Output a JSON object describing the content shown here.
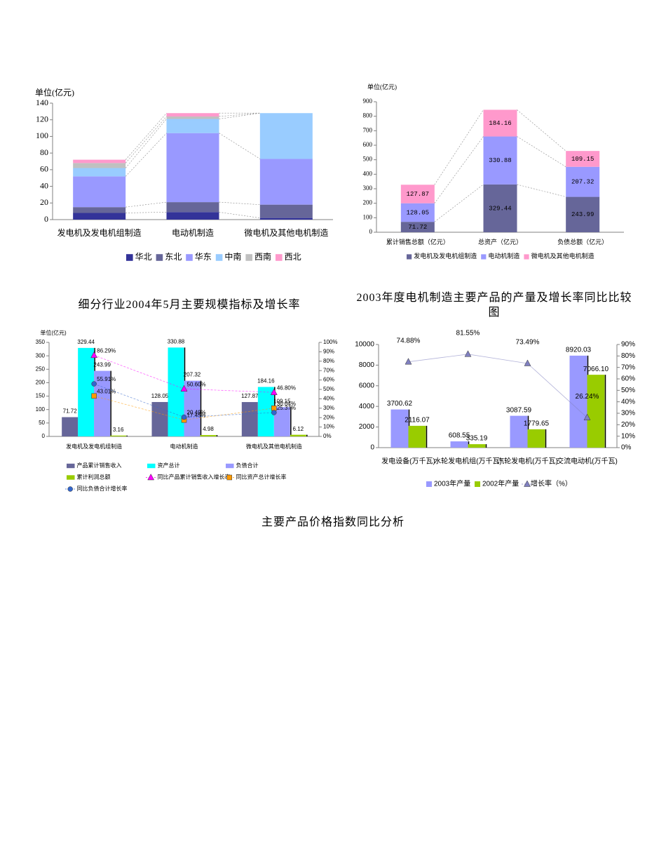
{
  "captions": [
    "细分行业2004年5月主要规模指标及增长率",
    "2003年度电机制造主要产品的产量及增长率同比比较图",
    "主要产品价格指数同比分析"
  ],
  "chart_data": [
    {
      "type": "stacked_bar",
      "y_label": "单位(亿元)",
      "categories": [
        "发电机及发电机组制造",
        "电动机制造",
        "微电机及其他电机制造"
      ],
      "series": [
        {
          "name": "华北",
          "color": "#333399",
          "values": [
            8,
            9,
            2
          ]
        },
        {
          "name": "东北",
          "color": "#666699",
          "values": [
            7,
            12,
            16
          ]
        },
        {
          "name": "华东",
          "color": "#9999ff",
          "values": [
            37,
            83,
            55
          ]
        },
        {
          "name": "中南",
          "color": "#99ccff",
          "values": [
            10,
            17,
            55
          ]
        },
        {
          "name": "西南",
          "color": "#c0c0c0",
          "values": [
            6,
            3,
            0
          ]
        },
        {
          "name": "西北",
          "color": "#ff99cc",
          "values": [
            4,
            4,
            0
          ]
        }
      ],
      "ylim": [
        0,
        140
      ],
      "yticks": [
        0,
        20,
        40,
        60,
        80,
        100,
        120,
        140
      ],
      "series_lines": true,
      "legend": "bottom"
    },
    {
      "type": "stacked_bar",
      "y_label": "单位(亿元)",
      "data_labels": true,
      "categories": [
        "累计销售总额（亿元）",
        "总资产（亿元）",
        "负债总额（亿元）"
      ],
      "series": [
        {
          "name": "发电机及发电机组制造",
          "color": "#666699",
          "values": [
            71.72,
            329.44,
            243.99
          ]
        },
        {
          "name": "电动机制造",
          "color": "#9999ff",
          "values": [
            128.05,
            330.88,
            207.32
          ]
        },
        {
          "name": "微电机及其他电机制造",
          "color": "#ff99cc",
          "values": [
            127.87,
            184.16,
            109.15
          ]
        }
      ],
      "ylim": [
        0,
        900
      ],
      "yticks": [
        0,
        100,
        200,
        300,
        400,
        500,
        600,
        700,
        800,
        900
      ],
      "series_lines": true,
      "legend": "bottom"
    },
    {
      "type": "combo",
      "y_label": "单位(亿元)",
      "data_labels": true,
      "categories": [
        "发电机及发电机组制造",
        "电动机制造",
        "微电机及其他电机制造"
      ],
      "series": [
        {
          "name": "产品累计销售收入",
          "type": "bar",
          "color": "#666699",
          "values": [
            71.72,
            128.05,
            127.87
          ]
        },
        {
          "name": "资产总计",
          "type": "bar",
          "color": "#00ffff",
          "values": [
            329.44,
            330.88,
            184.16
          ]
        },
        {
          "name": "负债合计",
          "type": "bar",
          "color": "#9999ff",
          "values": [
            243.99,
            207.32,
            109.15
          ]
        },
        {
          "name": "累计利润总额",
          "type": "bar",
          "color": "#99cc00",
          "values": [
            3.16,
            4.98,
            6.12
          ]
        },
        {
          "name": "同比产品累计销售收入增长率",
          "type": "line",
          "axis": "y2",
          "marker": "triangle",
          "color": "#ff00ff",
          "values": [
            86.29,
            50.6,
            46.8
          ],
          "value_labels": [
            "86.29%",
            "50.60%",
            "46.80%"
          ]
        },
        {
          "name": "同比资产总计增长率",
          "type": "line",
          "axis": "y2",
          "marker": "square",
          "color": "#ff9900",
          "values": [
            43.01,
            17.45,
            30.04
          ],
          "value_labels": [
            "43.01%",
            "17.45%",
            "30.04%"
          ]
        },
        {
          "name": "同比负债合计增长率",
          "type": "line",
          "axis": "y2",
          "marker": "circle",
          "color": "#3366cc",
          "values": [
            55.91,
            20.49,
            25.37
          ],
          "value_labels": [
            "55.91%",
            "20.49%",
            "25.37%"
          ]
        }
      ],
      "ylim": [
        0,
        350
      ],
      "yticks": [
        0,
        50,
        100,
        150,
        200,
        250,
        300,
        350
      ],
      "y2lim": [
        0,
        100
      ],
      "y2ticks": [
        {
          "value": 0,
          "label": "0%"
        },
        {
          "value": 10,
          "label": "10%"
        },
        {
          "value": 20,
          "label": "20%"
        },
        {
          "value": 30,
          "label": "30%"
        },
        {
          "value": 40,
          "label": "40%"
        },
        {
          "value": 50,
          "label": "50%"
        },
        {
          "value": 60,
          "label": "60%"
        },
        {
          "value": 70,
          "label": "70%"
        },
        {
          "value": 80,
          "label": "80%"
        },
        {
          "value": 90,
          "label": "90%"
        },
        {
          "value": 100,
          "label": "100%"
        }
      ],
      "legend": "bottom"
    },
    {
      "type": "combo",
      "data_labels": true,
      "categories": [
        "发电设备(万千瓦)",
        "水轮发电机组(万千瓦)",
        "汽轮发电机(万千瓦)",
        "交流电动机(万千瓦)"
      ],
      "series": [
        {
          "name": "2003年产量",
          "type": "bar",
          "color": "#9999ff",
          "values": [
            3700.62,
            608.55,
            3087.59,
            8920.03
          ]
        },
        {
          "name": "2002年产量",
          "type": "bar",
          "color": "#99cc00",
          "values": [
            2116.07,
            335.19,
            1779.65,
            7066.1
          ],
          "value_labels": [
            "2116.07",
            "335.19",
            "1779.65",
            "7066.10"
          ]
        },
        {
          "name": "增长率（%）",
          "type": "line",
          "axis": "y2",
          "marker": "triangle",
          "color": "#8080c0",
          "values": [
            74.88,
            81.55,
            73.49,
            26.24
          ],
          "value_labels": [
            "74.88%",
            "81.55%",
            "73.49%",
            "26.24%"
          ]
        }
      ],
      "ylim": [
        0,
        10000
      ],
      "yticks": [
        0,
        2000,
        4000,
        6000,
        8000,
        10000
      ],
      "y2lim": [
        0,
        90
      ],
      "y2ticks": [
        {
          "value": 0,
          "label": "0%"
        },
        {
          "value": 10,
          "label": "10%"
        },
        {
          "value": 20,
          "label": "20%"
        },
        {
          "value": 30,
          "label": "30%"
        },
        {
          "value": 40,
          "label": "40%"
        },
        {
          "value": 50,
          "label": "50%"
        },
        {
          "value": 60,
          "label": "60%"
        },
        {
          "value": 70,
          "label": "70%"
        },
        {
          "value": 80,
          "label": "80%"
        },
        {
          "value": 90,
          "label": "90%"
        }
      ],
      "legend": "bottom"
    }
  ]
}
